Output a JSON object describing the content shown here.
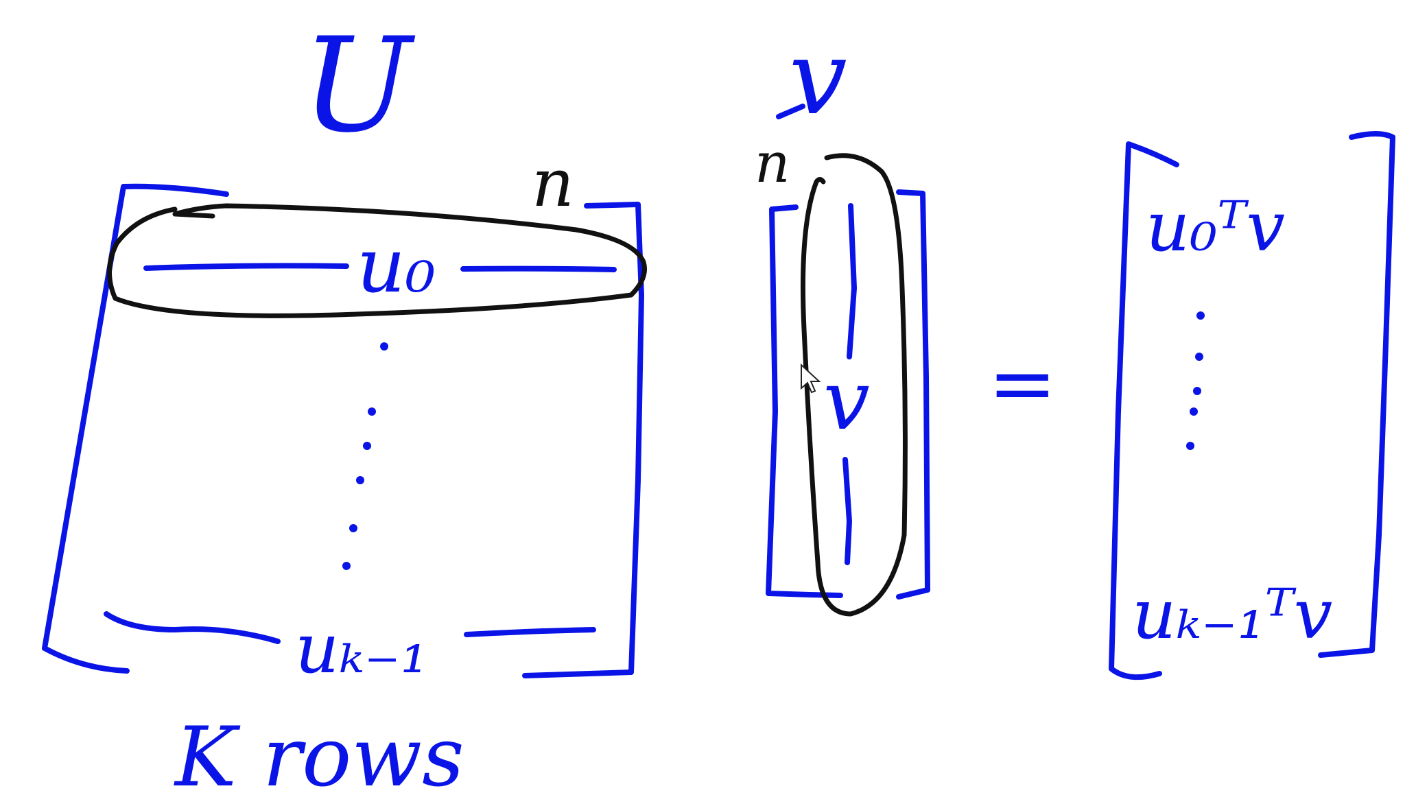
{
  "colors": {
    "ink_blue": "#0a14e6",
    "ink_black": "#111111",
    "background": "#ffffff"
  },
  "matrix": {
    "title": "U",
    "dim_label": "n",
    "first_row": "u₀",
    "last_row": "uₖ₋₁",
    "rows_note": "K rows"
  },
  "vector": {
    "title": "v",
    "dim_label": "n",
    "label": "v"
  },
  "equation": {
    "equals": "="
  },
  "result": {
    "first_entry": "u₀ᵀv",
    "last_entry": "uₖ₋₁ᵀv"
  },
  "cursor": {
    "icon": "mouse-pointer-icon"
  }
}
